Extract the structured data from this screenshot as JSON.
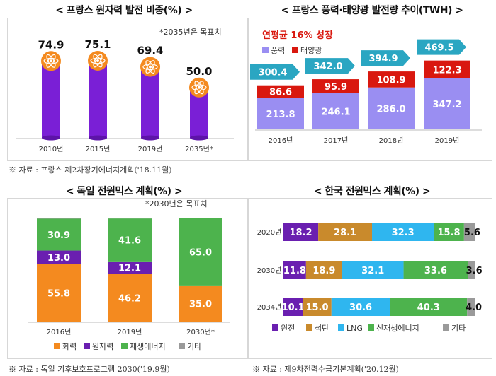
{
  "panels": {
    "p1": {
      "title": "< 프랑스 원자력 발전 비중(%) >",
      "note": "*2035년은 목표치",
      "source": "※ 자료 : 프랑스 제2차장기에너지계획('18.11월)"
    },
    "p2": {
      "title": "< 프랑스 풍력·태양광 발전량 추이(TWH) >",
      "headline": "연평균 16% 성장"
    },
    "p3": {
      "title": "< 독일 전원믹스 계획(%) >",
      "note": "*2030년은 목표치",
      "source": "※ 자료 : 독일 기후보호프로그램 2030('19.9월)"
    },
    "p4": {
      "title": "< 한국 전원믹스 계획(%) >",
      "source": "※ 자료 : 제9차전력수급기본계획('20.12월)"
    }
  },
  "colors": {
    "purple": "#7a1fd6",
    "orange": "#f48a1f",
    "green": "#4db34d",
    "gray": "#9a9a9a",
    "red": "#d9180f",
    "teal": "#2aa6c2",
    "lavender": "#9a8ef2",
    "tan": "#c98a2c",
    "lightblue": "#2fb6ef",
    "darkpurple": "#6a1fb0"
  },
  "chart_data": [
    {
      "id": "france-nuclear",
      "type": "bar",
      "categories": [
        "2010년",
        "2015년",
        "2019년",
        "2035년*"
      ],
      "values": [
        74.9,
        75.1,
        69.4,
        50.0
      ],
      "value_labels": [
        "74.9",
        "75.1",
        "69.4",
        "50.0"
      ],
      "ylim": [
        0,
        80
      ]
    },
    {
      "id": "france-wind-solar",
      "type": "bar",
      "stacked": true,
      "categories": [
        "2016년",
        "2017년",
        "2018년",
        "2019년"
      ],
      "series": [
        {
          "name": "풍력",
          "values": [
            213.8,
            246.1,
            286.0,
            347.2
          ],
          "labels": [
            "213.8",
            "246.1",
            "286.0",
            "347.2"
          ]
        },
        {
          "name": "태양광",
          "values": [
            86.6,
            95.9,
            108.9,
            122.3
          ],
          "labels": [
            "86.6",
            "95.9",
            "108.9",
            "122.3"
          ]
        }
      ],
      "totals": [
        300.4,
        342.0,
        394.9,
        469.5
      ],
      "total_labels": [
        "300.4",
        "342.0",
        "394.9",
        "469.5"
      ],
      "ylim": [
        0,
        480
      ]
    },
    {
      "id": "germany-mix",
      "type": "bar",
      "stacked": true,
      "categories": [
        "2016년",
        "2019년",
        "2030년*"
      ],
      "series": [
        {
          "name": "화력",
          "values": [
            55.8,
            46.2,
            35.0
          ],
          "labels": [
            "55.8",
            "46.2",
            "35.0"
          ]
        },
        {
          "name": "원자력",
          "values": [
            13.0,
            12.1,
            0
          ],
          "labels": [
            "13.0",
            "12.1",
            ""
          ]
        },
        {
          "name": "재생에너지",
          "values": [
            30.9,
            41.6,
            65.0
          ],
          "labels": [
            "30.9",
            "41.6",
            "65.0"
          ]
        },
        {
          "name": "기타",
          "values": [
            0.3,
            0.1,
            0
          ],
          "labels": [
            "",
            "",
            ""
          ]
        }
      ],
      "ylim": [
        0,
        100
      ]
    },
    {
      "id": "korea-mix",
      "type": "bar",
      "orientation": "horizontal",
      "stacked": true,
      "categories": [
        "2020년",
        "2030년",
        "2034년"
      ],
      "series": [
        {
          "name": "원전",
          "values": [
            18.2,
            11.8,
            10.1
          ],
          "labels": [
            "18.2",
            "11.8",
            "10.1"
          ]
        },
        {
          "name": "석탄",
          "values": [
            28.1,
            18.9,
            15.0
          ],
          "labels": [
            "28.1",
            "18.9",
            "15.0"
          ]
        },
        {
          "name": "LNG",
          "values": [
            32.3,
            32.1,
            30.6
          ],
          "labels": [
            "32.3",
            "32.1",
            "30.6"
          ]
        },
        {
          "name": "신재생에너지",
          "values": [
            15.8,
            33.6,
            40.3
          ],
          "labels": [
            "15.8",
            "33.6",
            "40.3"
          ]
        },
        {
          "name": "기타",
          "values": [
            5.6,
            3.6,
            4.0
          ],
          "labels": [
            "5.6",
            "3.6",
            "4.0"
          ]
        }
      ],
      "xlim": [
        0,
        100
      ]
    }
  ]
}
